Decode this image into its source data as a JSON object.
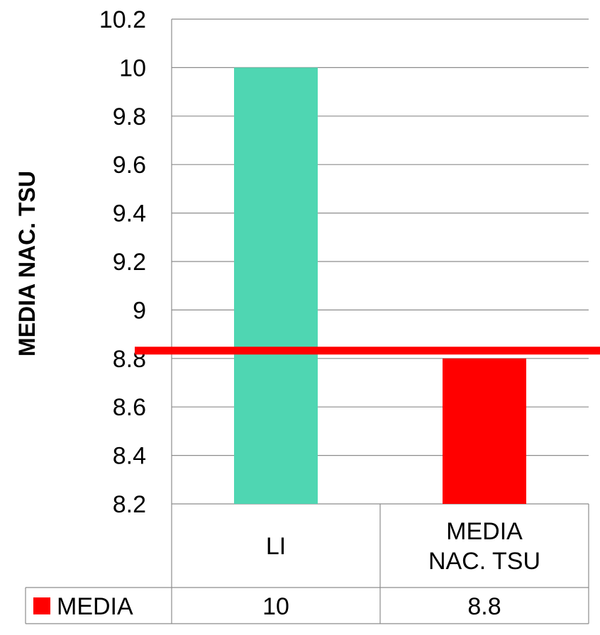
{
  "chart_data": {
    "type": "bar",
    "categories": [
      "LI",
      "MEDIA NAC. TSU"
    ],
    "category_label_lines": [
      [
        "LI"
      ],
      [
        "MEDIA",
        "NAC. TSU"
      ]
    ],
    "series": [
      {
        "name": "MEDIA",
        "values": [
          10,
          8.8
        ]
      }
    ],
    "bar_colors": [
      "#4fd6b2",
      "#ff0000"
    ],
    "ylabel": "MEDIA  NAC. TSU",
    "ylim": [
      8.2,
      10.2
    ],
    "yticks": [
      "10.2",
      "10",
      "9.8",
      "9.6",
      "9.4",
      "9.2",
      "9",
      "8.8",
      "8.6",
      "8.4",
      "8.2"
    ],
    "reference_line": {
      "value": 8.8,
      "color": "#ff0000"
    },
    "grid": true,
    "data_table": {
      "legend_color": "#ff0000",
      "row_label": "MEDIA",
      "values": [
        "10",
        "8.8"
      ]
    }
  }
}
